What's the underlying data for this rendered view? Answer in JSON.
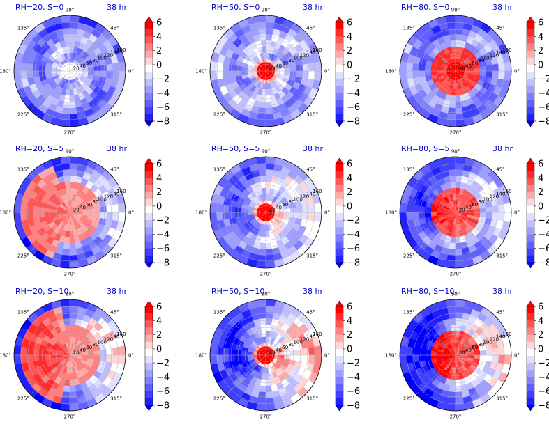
{
  "chart_data": {
    "type": "polar-contour",
    "time_label": "38 hr",
    "title_color": "#0000cc",
    "angular_ticks": [
      "90°",
      "135°",
      "180°",
      "225°",
      "270°",
      "315°",
      "0°",
      "45°"
    ],
    "radial_ticks": [
      "20",
      "40",
      "60",
      "80",
      "100",
      "120",
      "140",
      "160"
    ],
    "colorbar": {
      "min": -8,
      "max": 6,
      "step": 1,
      "tick_labels": [
        "6",
        "4",
        "2",
        "0",
        "−2",
        "−4",
        "−6",
        "−8"
      ],
      "neg_color": "#0000ff",
      "pos_color": "#ff0000",
      "mid_color": "#ffffff"
    },
    "panels": [
      {
        "title": "RH=20, S=0",
        "rh": 20,
        "s": 0
      },
      {
        "title": "RH=50, S=0",
        "rh": 50,
        "s": 0
      },
      {
        "title": "RH=80, S=0",
        "rh": 80,
        "s": 0
      },
      {
        "title": "RH=20, S=5",
        "rh": 20,
        "s": 5
      },
      {
        "title": "RH=50, S=5",
        "rh": 50,
        "s": 5
      },
      {
        "title": "RH=80, S=5",
        "rh": 80,
        "s": 5
      },
      {
        "title": "RH=20, S=10",
        "rh": 20,
        "s": 10
      },
      {
        "title": "RH=50, S=10",
        "rh": 50,
        "s": 10
      },
      {
        "title": "RH=80, S=10",
        "rh": 80,
        "s": 10
      }
    ]
  }
}
